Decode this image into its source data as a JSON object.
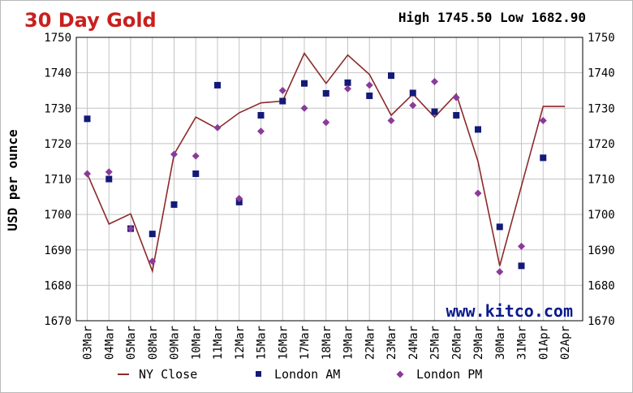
{
  "chart_data": {
    "type": "line",
    "title": "30 Day Gold",
    "high_low": "High 1745.50 Low 1682.90",
    "ylabel": "USD per ounce",
    "xlabel": "",
    "watermark": "www.kitco.com",
    "ylim": [
      1670,
      1750
    ],
    "yticks": [
      1750,
      1740,
      1730,
      1720,
      1710,
      1700,
      1690,
      1680,
      1670
    ],
    "grid": true,
    "legend_position": "bottom",
    "categories": [
      "03Mar",
      "04Mar",
      "05Mar",
      "08Mar",
      "09Mar",
      "10Mar",
      "11Mar",
      "12Mar",
      "15Mar",
      "16Mar",
      "17Mar",
      "18Mar",
      "19Mar",
      "22Mar",
      "23Mar",
      "24Mar",
      "25Mar",
      "26Mar",
      "29Mar",
      "30Mar",
      "31Mar",
      "01Apr",
      "02Apr"
    ],
    "series": [
      {
        "name": "NY Close",
        "marker": "line",
        "color": "#8b2a2a",
        "values": [
          1711.5,
          1697.3,
          1700.2,
          1684.0,
          1717.0,
          1727.5,
          1724.2,
          1728.7,
          1731.5,
          1732.0,
          1745.5,
          1737.0,
          1745.0,
          1739.5,
          1728.0,
          1734.0,
          1727.5,
          1734.0,
          1715.0,
          1685.5,
          1708.0,
          1730.5,
          1730.5
        ]
      },
      {
        "name": "London AM",
        "marker": "square",
        "color": "#141a78",
        "values": [
          1727.0,
          1710.0,
          1696.0,
          1694.5,
          1702.8,
          1711.5,
          1736.5,
          1703.5,
          1728.0,
          1732.0,
          1737.0,
          1734.2,
          1737.2,
          1733.5,
          1739.2,
          1734.3,
          1729.0,
          1728.0,
          1724.0,
          1696.5,
          1685.5,
          1716.0,
          null
        ]
      },
      {
        "name": "London PM",
        "marker": "diamond",
        "color": "#8a3a9a",
        "values": [
          1711.5,
          1712.0,
          1696.0,
          1686.8,
          1717.0,
          1716.5,
          1724.5,
          1704.5,
          1723.5,
          1735.0,
          1730.0,
          1726.0,
          1735.5,
          1736.5,
          1726.5,
          1730.8,
          1737.5,
          1733.0,
          1706.0,
          1683.8,
          1691.0,
          1726.5,
          null
        ]
      }
    ]
  }
}
